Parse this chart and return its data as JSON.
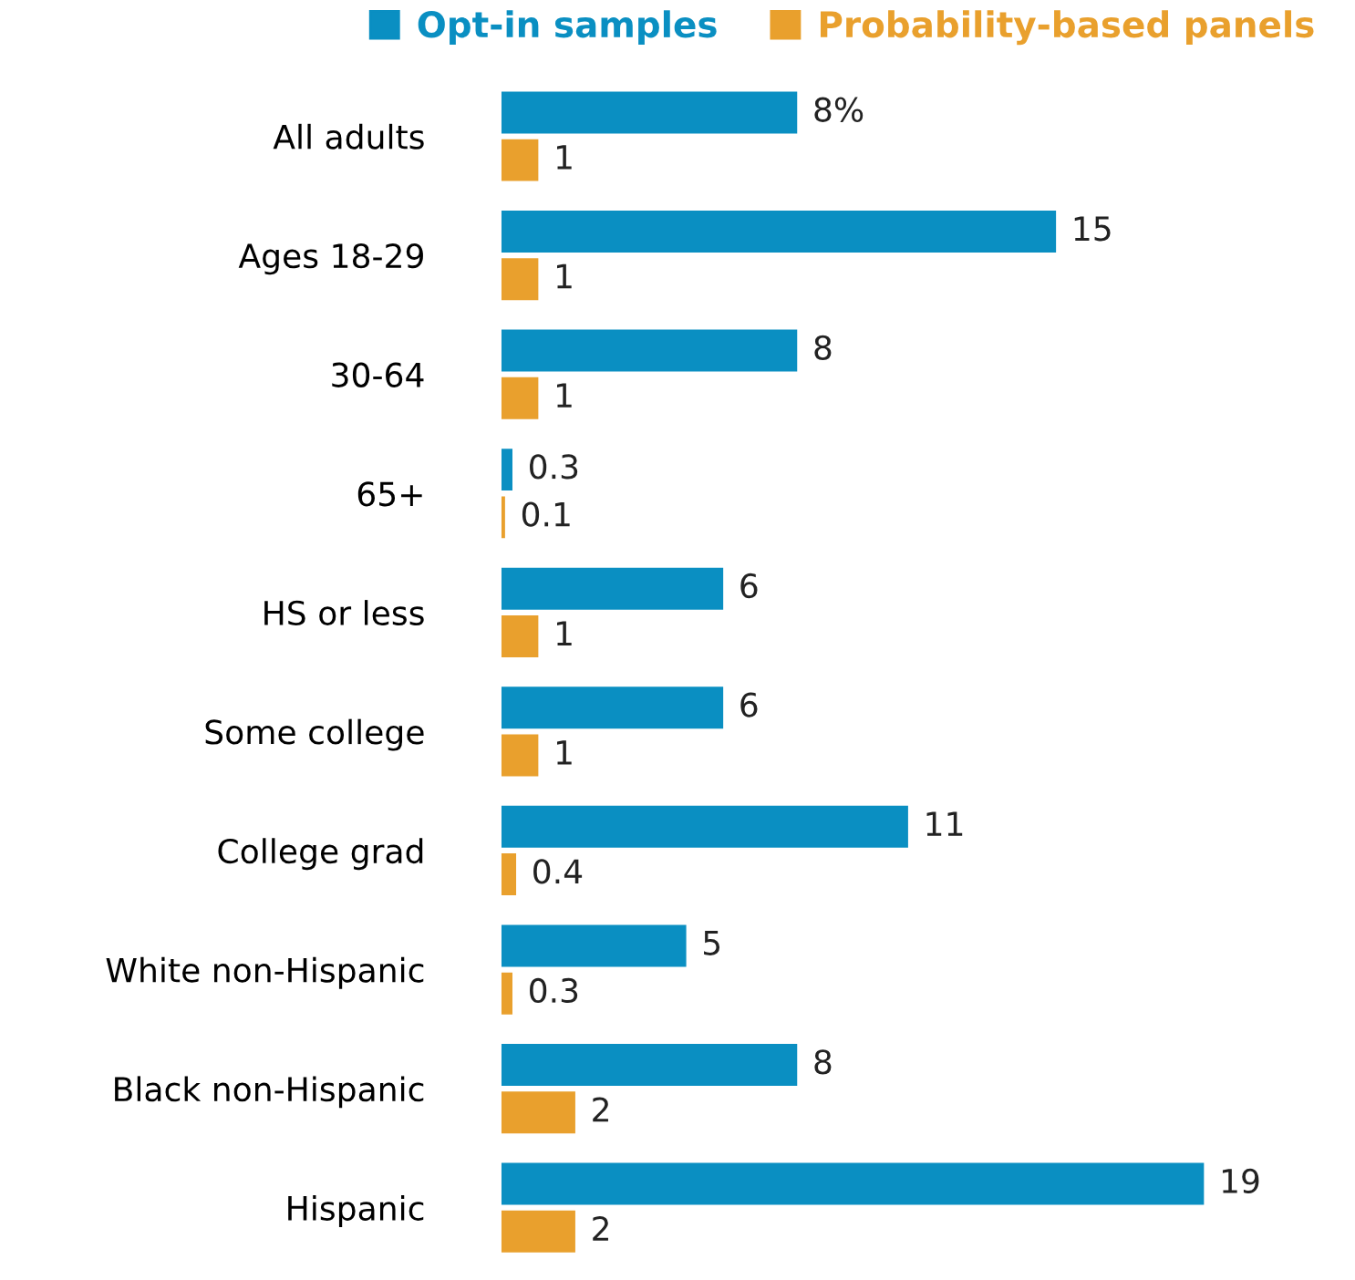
{
  "chart_data": {
    "type": "bar",
    "orientation": "horizontal",
    "categories": [
      "All adults",
      "Ages 18-29",
      "30-64",
      "65+",
      "HS or less",
      "Some college",
      "College grad",
      "White non-Hispanic",
      "Black non-Hispanic",
      "Hispanic"
    ],
    "series": [
      {
        "name": "Opt-in samples",
        "color": "#0a8fc2",
        "values": [
          8,
          15,
          8,
          0.3,
          6,
          6,
          11,
          5,
          8,
          19
        ],
        "value_labels": [
          "8%",
          "15",
          "8",
          "0.3",
          "6",
          "6",
          "11",
          "5",
          "8",
          "19"
        ]
      },
      {
        "name": "Probability-based panels",
        "color": "#e9a02d",
        "values": [
          1,
          1,
          1,
          0.1,
          1,
          1,
          0.4,
          0.3,
          2,
          2
        ],
        "value_labels": [
          "1",
          "1",
          "1",
          "0.1",
          "1",
          "1",
          "0.4",
          "0.3",
          "2",
          "2"
        ]
      }
    ],
    "legend": "top",
    "grid": false
  }
}
